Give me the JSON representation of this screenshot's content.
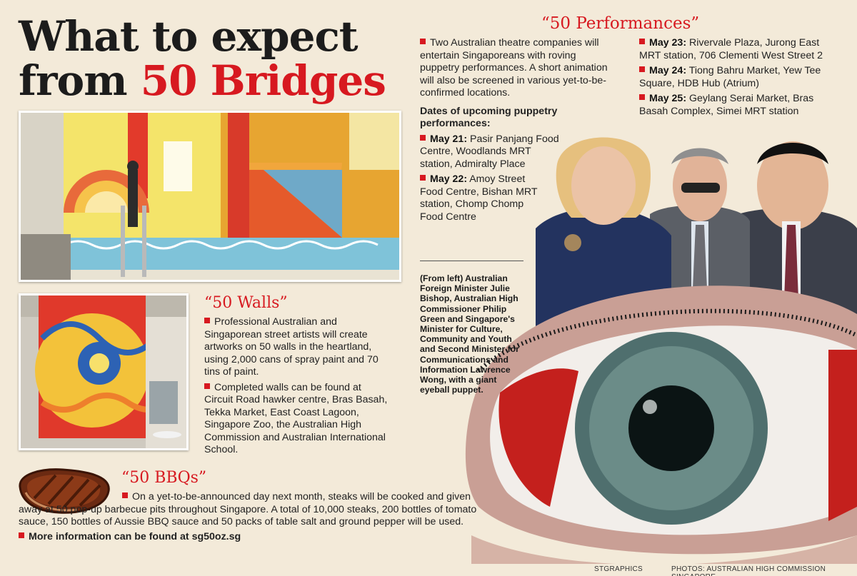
{
  "headline": {
    "line1": "What to expect",
    "line2_prefix": "from ",
    "line2_highlight": "50 Bridges"
  },
  "performances": {
    "title": "“50 Performances”",
    "intro": "Two Australian theatre companies will entertain Singaporeans with roving puppetry performances. A short animation will also be screened in various yet-to-be-confirmed locations.",
    "dates_heading": "Dates of upcoming puppetry performances:",
    "dates": [
      {
        "date": "May 21:",
        "places": "Pasir Panjang Food Centre, Woodlands MRT station, Admiralty Place"
      },
      {
        "date": "May 22:",
        "places": "Amoy Street Food Centre, Bishan MRT station, Chomp Chomp Food Centre"
      },
      {
        "date": "May 23:",
        "places": "Rivervale Plaza, Jurong East MRT station, 706 Clementi West Street 2"
      },
      {
        "date": "May 24:",
        "places": "Tiong Bahru Market, Yew Tee Square, HDB Hub (Atrium)"
      },
      {
        "date": "May 25:",
        "places": "Geylang Serai Market, Bras Basah Complex, Simei MRT station"
      }
    ]
  },
  "walls": {
    "title": "“50 Walls”",
    "p1": "Professional Australian and Singaporean street artists will create artworks on 50 walls in the heartland, using 2,000 cans of spray paint and 70 tins of paint.",
    "p2": "Completed walls can be found at Circuit Road hawker centre, Bras Basah, Tekka Market, East Coast Lagoon, Singapore Zoo, the Australian High Commission and Australian International School."
  },
  "bbqs": {
    "title": "“50 BBQs”",
    "p1": "On a yet-to-be-announced day next month, steaks will be cooked and given away at 50 pop-up barbecue pits throughout Singapore. A total of 10,000 steaks, 200 bottles of tomato sauce, 150 bottles of Aussie BBQ sauce and 50 packs of table salt and ground pepper will be used.",
    "more_info": "More information can be found at sg50oz.sg"
  },
  "caption": "(From left) Australian Foreign Minister Julie Bishop, Australian High Commissioner Philip Green and Singapore's Minister for Culture, Community and Youth and Second Minister for Communications and Information Lawrence Wong, with a giant eyeball puppet.",
  "credits": {
    "graphics": "STGRAPHICS",
    "photos": "PHOTOS: AUSTRALIAN HIGH COMMISSION SINGAPORE"
  },
  "colors": {
    "accent": "#d71920",
    "background": "#f3ead9"
  }
}
